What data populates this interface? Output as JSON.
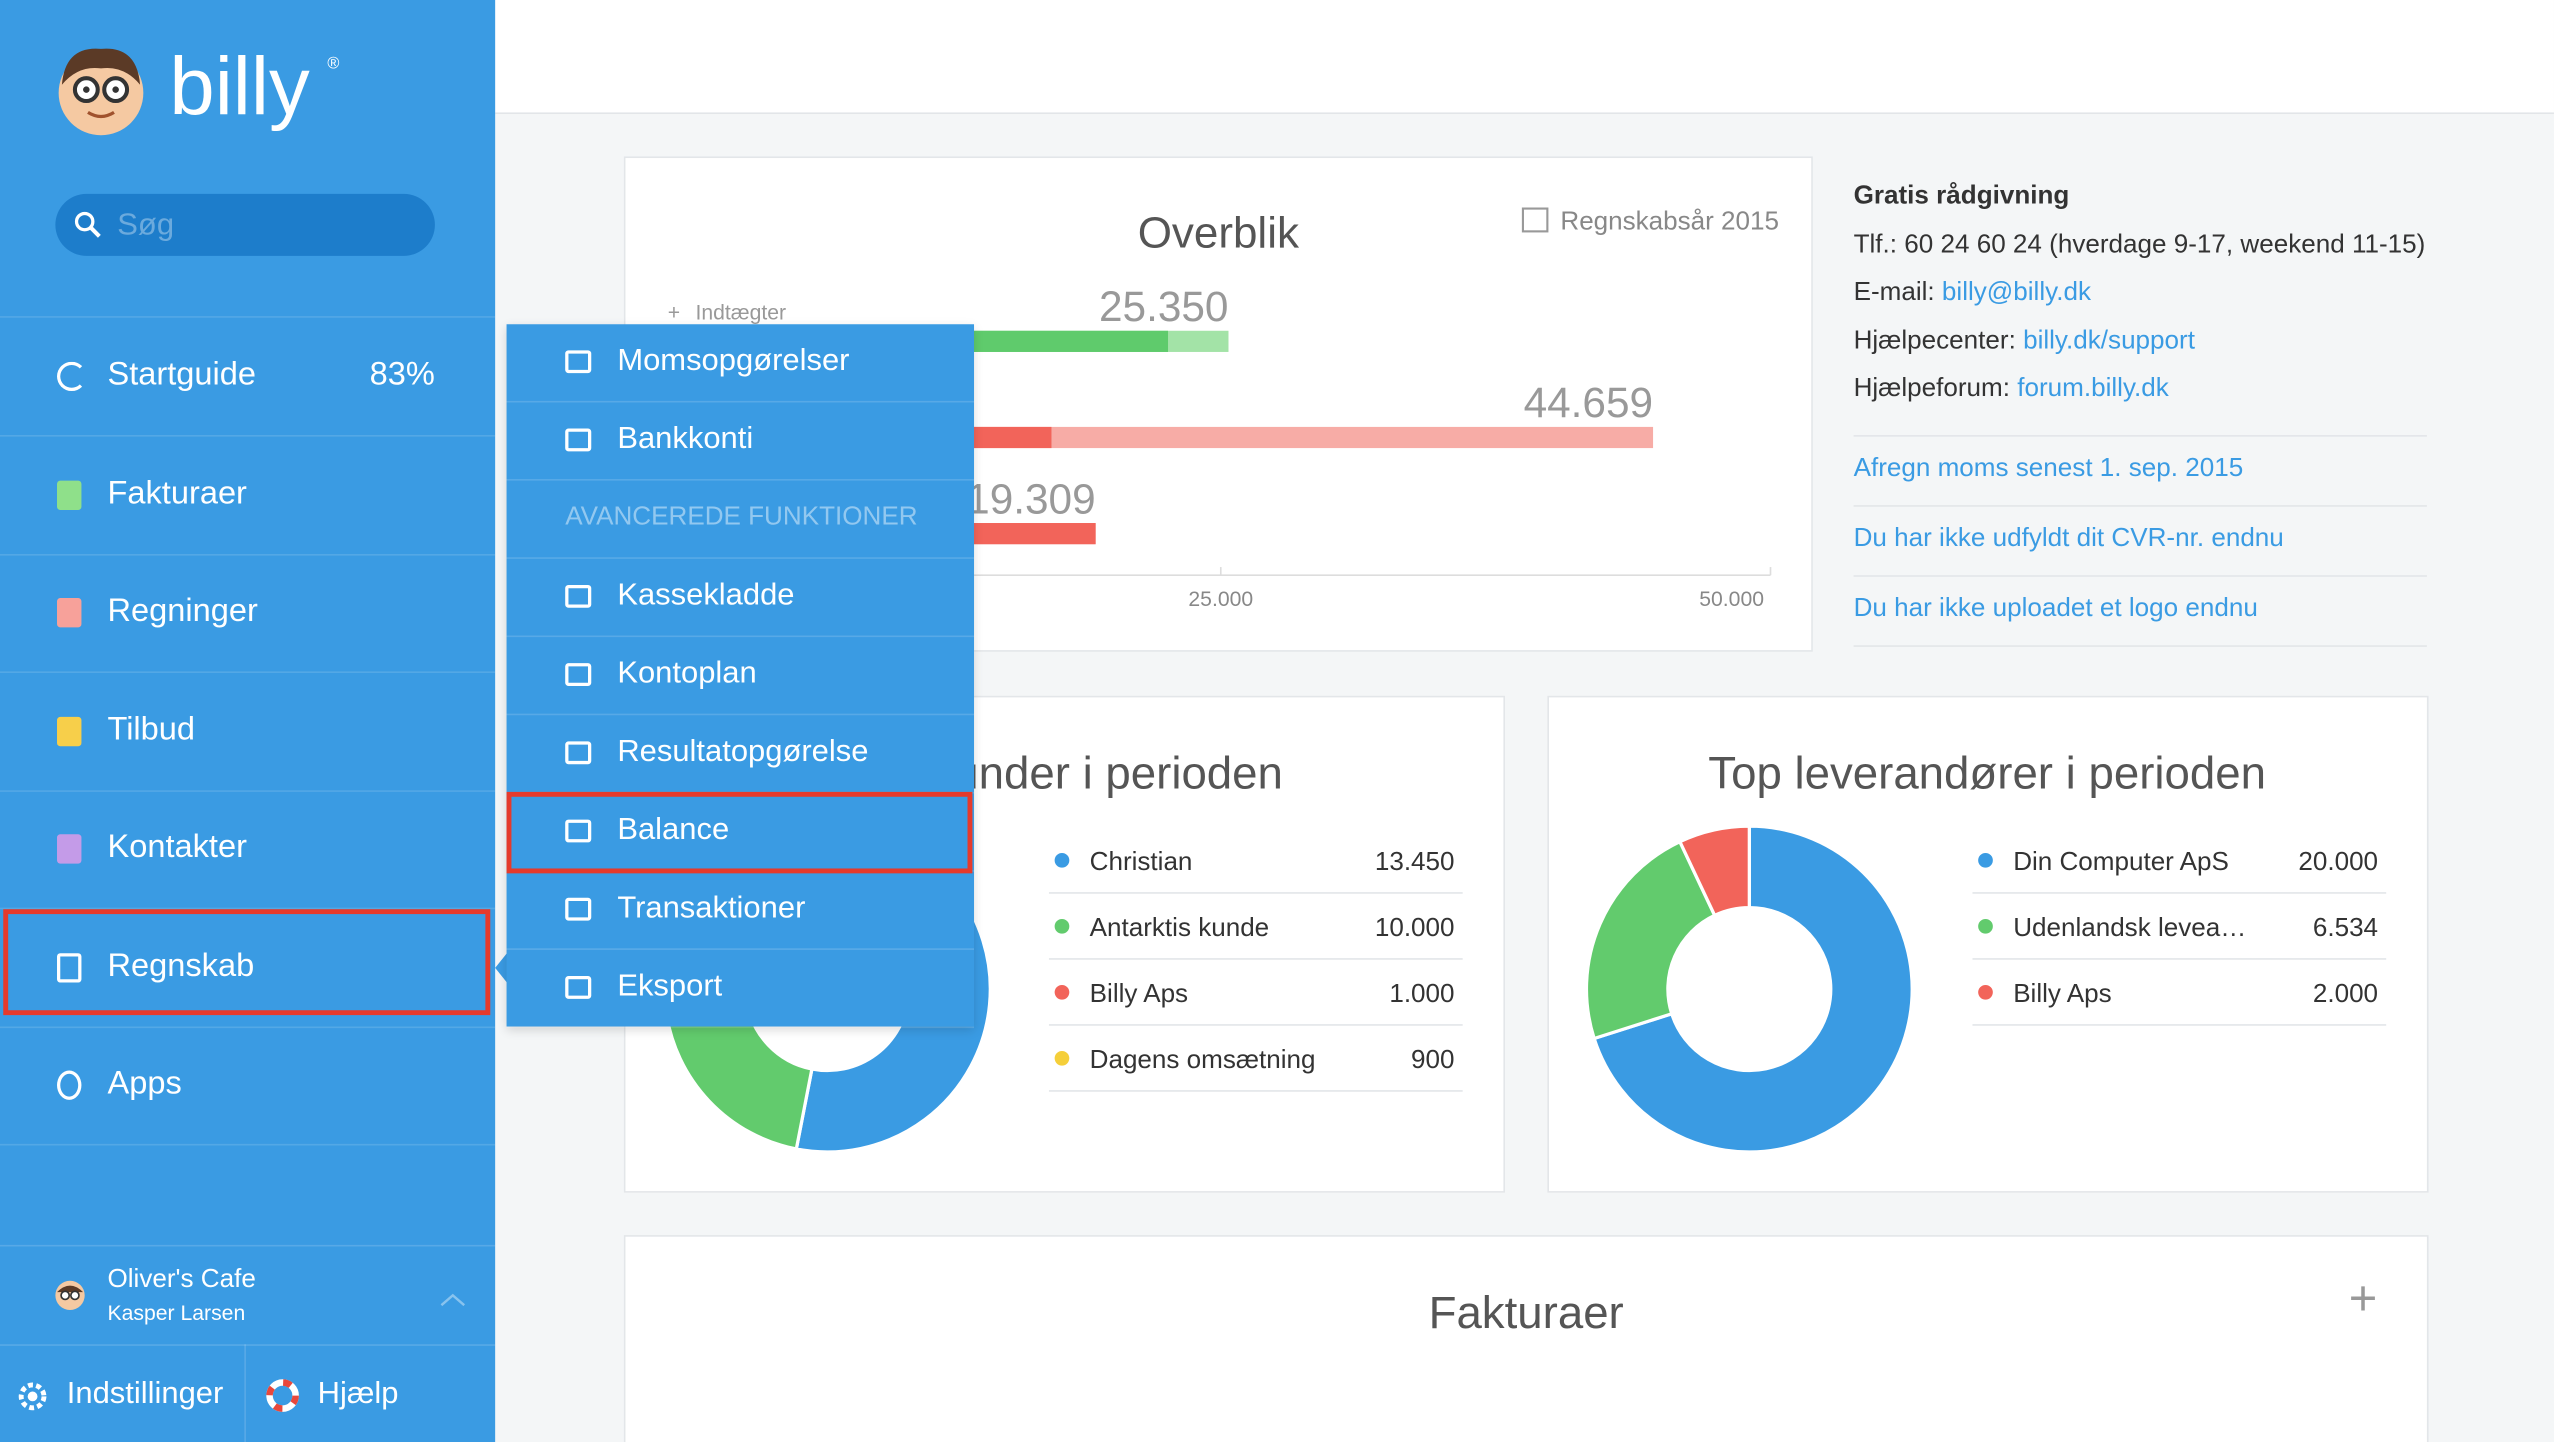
{
  "sidebar": {
    "brand": "billy",
    "search_placeholder": "Søg",
    "nav": [
      {
        "label": "Startguide",
        "badge": "83%"
      },
      {
        "label": "Fakturaer"
      },
      {
        "label": "Regninger"
      },
      {
        "label": "Tilbud"
      },
      {
        "label": "Kontakter"
      },
      {
        "label": "Regnskab"
      },
      {
        "label": "Apps"
      }
    ],
    "account": {
      "company": "Oliver's Cafe",
      "user": "Kasper Larsen"
    },
    "footer": [
      "Indstillinger",
      "Hjælp"
    ]
  },
  "submenu": {
    "items": [
      "Momsopgørelser",
      "Bankkonti"
    ],
    "section": "AVANCEREDE FUNKTIONER",
    "advanced": [
      "Kassekladde",
      "Kontoplan",
      "Resultatopgørelse",
      "Balance",
      "Transaktioner",
      "Eksport"
    ]
  },
  "overview": {
    "type": "bar",
    "title": "Overblik",
    "period": "Regnskabsår 2015",
    "legend": "Indtægter",
    "bars": [
      {
        "value": 25350,
        "label": "25.350",
        "part": 22600,
        "color": "#5fcb6c",
        "light": "#a3e3a7"
      },
      {
        "value": 44659,
        "label": "44.659",
        "part": 17300,
        "color": "#f2645a",
        "light": "#f7aca6"
      },
      {
        "value": 19309,
        "label": "19.309",
        "part": 19309,
        "color": "#f2645a",
        "light": "#f7aca6"
      }
    ],
    "xlim": [
      0,
      50000
    ],
    "xticks": [
      {
        "value": 25000,
        "label": "25.000"
      },
      {
        "value": 50000,
        "label": "50.000"
      }
    ]
  },
  "customers": {
    "type": "pie",
    "title": "Top kunder i perioden",
    "items": [
      {
        "name": "Christian",
        "value": 13450,
        "label": "13.450",
        "color": "#3a9be3"
      },
      {
        "name": "Antarktis kunde",
        "value": 10000,
        "label": "10.000",
        "color": "#62cb6d"
      },
      {
        "name": "Billy Aps",
        "value": 1000,
        "label": "1.000",
        "color": "#f2645a"
      },
      {
        "name": "Dagens omsætning",
        "value": 900,
        "label": "900",
        "color": "#f5cf3a"
      }
    ]
  },
  "suppliers": {
    "type": "pie",
    "title": "Top leverandører i perioden",
    "items": [
      {
        "name": "Din Computer ApS",
        "value": 20000,
        "label": "20.000",
        "color": "#3a9be3"
      },
      {
        "name": "Udenlandsk levea…",
        "value": 6534,
        "label": "6.534",
        "color": "#62cb6d"
      },
      {
        "name": "Billy Aps",
        "value": 2000,
        "label": "2.000",
        "color": "#f2645a"
      }
    ]
  },
  "info": {
    "title": "Gratis rådgivning",
    "phone": "Tlf.: 60 24 60 24 (hverdage 9-17, weekend 11-15)",
    "contacts": [
      {
        "label": "E-mail:",
        "link": "billy@billy.dk"
      },
      {
        "label": "Hjælpecenter:",
        "link": "billy.dk/support"
      },
      {
        "label": "Hjælpeforum:",
        "link": "forum.billy.dk"
      }
    ],
    "notices": [
      "Afregn moms senest 1. sep. 2015",
      "Du har ikke udfyldt dit CVR-nr. endnu",
      "Du har ikke uploadet et logo endnu"
    ]
  },
  "invoices": {
    "title": "Fakturaer"
  }
}
